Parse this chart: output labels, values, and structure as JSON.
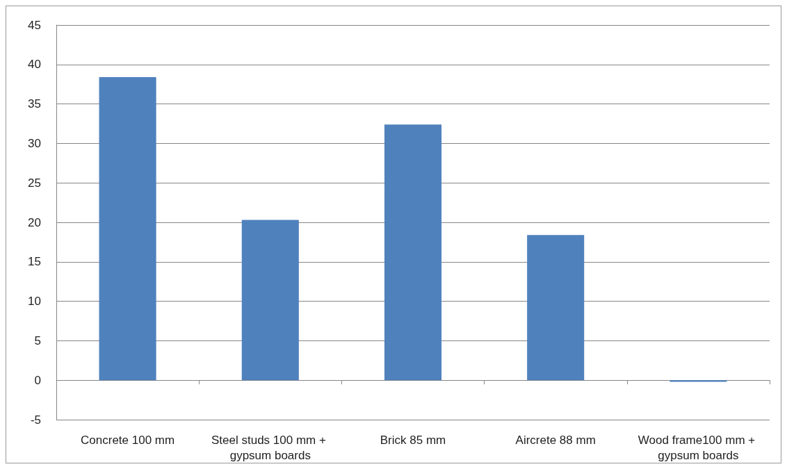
{
  "chart_data": {
    "type": "bar",
    "categories": [
      "Concrete 100 mm",
      "Steel studs 100 mm + gypsum boards",
      "Brick 85 mm",
      "Aircrete 88 mm",
      "Wood frame100 mm + gypsum boards"
    ],
    "values": [
      38.4,
      20.3,
      32.4,
      18.4,
      -0.2
    ],
    "color": "#4f81bd",
    "ylim": [
      -5,
      45
    ],
    "yticks": [
      -5,
      0,
      5,
      10,
      15,
      20,
      25,
      30,
      35,
      40,
      45
    ],
    "grid": "y"
  }
}
